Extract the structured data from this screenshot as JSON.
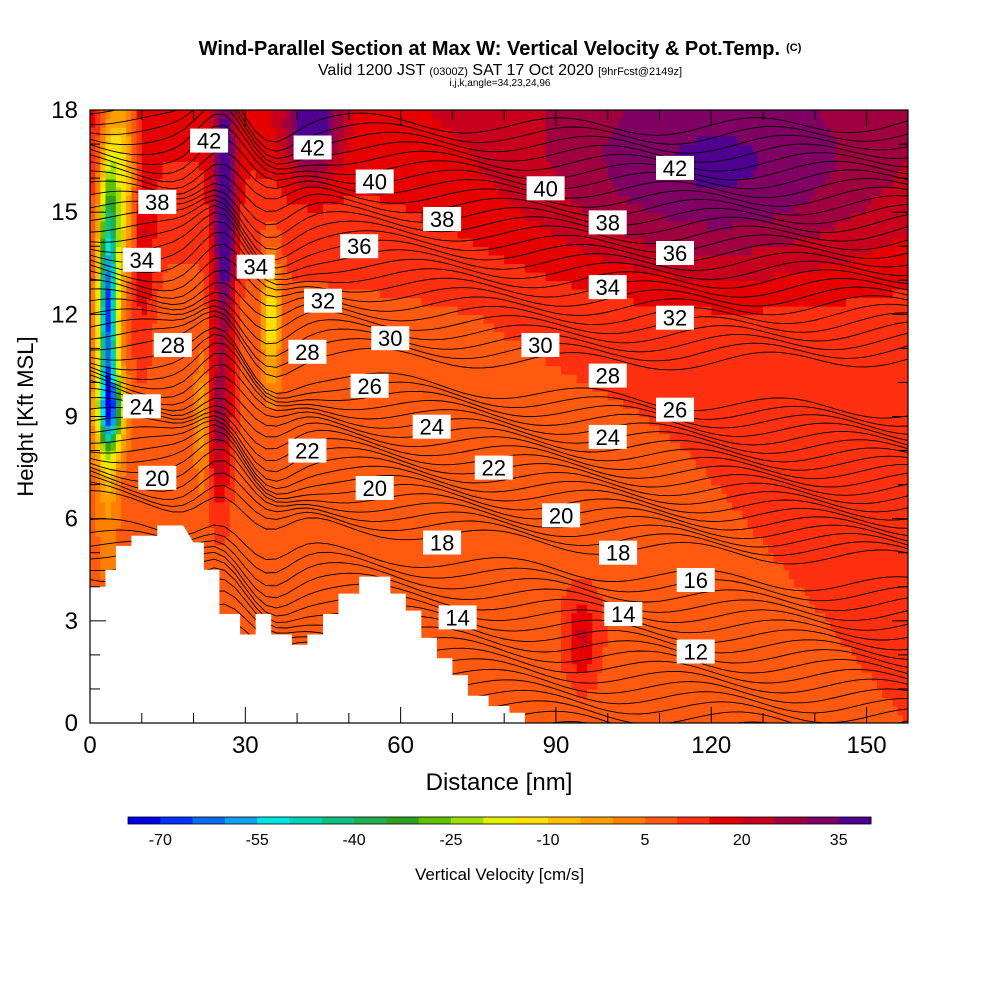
{
  "header": {
    "title": "Wind-Parallel Section at Max W: Vertical Velocity & Pot.Temp.",
    "copyright_mark": "(C)",
    "valid_prefix": "Valid 1200 JST",
    "utc_time": "(0300Z)",
    "valid_date": "SAT 17 Oct 2020",
    "forecast_info": "[9hrFcst@2149z]",
    "params": "i,j,k,angle=34,23,24,96"
  },
  "chart_data": {
    "type": "heatmap",
    "title": "Wind-Parallel Section at Max W: Vertical Velocity & Pot.Temp.",
    "xlabel": "Distance [nm]",
    "ylabel": "Height [Kft MSL]",
    "xlim": [
      0,
      158
    ],
    "ylim": [
      0,
      18
    ],
    "x_ticks": [
      0,
      30,
      60,
      90,
      120,
      150
    ],
    "y_ticks": [
      0,
      3,
      6,
      9,
      12,
      15,
      18
    ],
    "grid": false,
    "fill_variable": "Vertical Velocity [cm/s]",
    "contour_variable": "Potential Temperature",
    "colorbar": {
      "label": "Vertical Velocity [cm/s]",
      "tick_labels": [
        "-70",
        "-55",
        "-40",
        "-25",
        "-10",
        "5",
        "20",
        "35"
      ],
      "range": [
        -75,
        40
      ],
      "colors": [
        "#0000e6",
        "#0033ff",
        "#0a6cf0",
        "#10a0f0",
        "#00e6e6",
        "#00d2b4",
        "#10c080",
        "#20b050",
        "#30a020",
        "#60c000",
        "#a0e000",
        "#e6f000",
        "#ffe000",
        "#ffc000",
        "#ffa000",
        "#ff8000",
        "#ff5a10",
        "#ff3010",
        "#e60000",
        "#c8001e",
        "#a00040",
        "#800064",
        "#500090"
      ]
    },
    "terrain_profile": [
      [
        0,
        4
      ],
      [
        3,
        4
      ],
      [
        3,
        4.5
      ],
      [
        5,
        4.5
      ],
      [
        5,
        5.2
      ],
      [
        8,
        5.2
      ],
      [
        8,
        5.5
      ],
      [
        13,
        5.5
      ],
      [
        13,
        5.8
      ],
      [
        18,
        5.8
      ],
      [
        18,
        5.8
      ],
      [
        20,
        5.3
      ],
      [
        22,
        5.3
      ],
      [
        22,
        4.5
      ],
      [
        25,
        4.5
      ],
      [
        25,
        3.2
      ],
      [
        29,
        3.2
      ],
      [
        29,
        2.6
      ],
      [
        32,
        2.6
      ],
      [
        32,
        3.2
      ],
      [
        35,
        3.2
      ],
      [
        35,
        2.6
      ],
      [
        39,
        2.6
      ],
      [
        39,
        2.3
      ],
      [
        42,
        2.3
      ],
      [
        42,
        2.6
      ],
      [
        45,
        2.6
      ],
      [
        45,
        3.2
      ],
      [
        48,
        3.2
      ],
      [
        48,
        3.8
      ],
      [
        52,
        3.8
      ],
      [
        52,
        4.3
      ],
      [
        58,
        4.3
      ],
      [
        58,
        3.8
      ],
      [
        61,
        3.8
      ],
      [
        61,
        3.3
      ],
      [
        64,
        3.3
      ],
      [
        64,
        2.5
      ],
      [
        67,
        2.5
      ],
      [
        67,
        1.9
      ],
      [
        70,
        1.9
      ],
      [
        70,
        1.4
      ],
      [
        73,
        1.4
      ],
      [
        73,
        0.8
      ],
      [
        77,
        0.8
      ],
      [
        77,
        0.5
      ],
      [
        81,
        0.5
      ],
      [
        81,
        0.3
      ],
      [
        84,
        0.3
      ]
    ],
    "isentrope_labels": [
      {
        "value": "42",
        "x": 23,
        "y": 17.1
      },
      {
        "value": "42",
        "x": 43,
        "y": 16.9
      },
      {
        "value": "40",
        "x": 55,
        "y": 15.9
      },
      {
        "value": "40",
        "x": 88,
        "y": 15.7
      },
      {
        "value": "42",
        "x": 113,
        "y": 16.3
      },
      {
        "value": "38",
        "x": 13,
        "y": 15.3
      },
      {
        "value": "38",
        "x": 68,
        "y": 14.8
      },
      {
        "value": "38",
        "x": 100,
        "y": 14.7
      },
      {
        "value": "34",
        "x": 10,
        "y": 13.6
      },
      {
        "value": "34",
        "x": 32,
        "y": 13.4
      },
      {
        "value": "36",
        "x": 52,
        "y": 14.0
      },
      {
        "value": "36",
        "x": 113,
        "y": 13.8
      },
      {
        "value": "34",
        "x": 100,
        "y": 12.8
      },
      {
        "value": "32",
        "x": 45,
        "y": 12.4
      },
      {
        "value": "32",
        "x": 113,
        "y": 11.9
      },
      {
        "value": "30",
        "x": 58,
        "y": 11.3
      },
      {
        "value": "30",
        "x": 87,
        "y": 11.1
      },
      {
        "value": "28",
        "x": 16,
        "y": 11.1
      },
      {
        "value": "28",
        "x": 42,
        "y": 10.9
      },
      {
        "value": "28",
        "x": 100,
        "y": 10.2
      },
      {
        "value": "26",
        "x": 54,
        "y": 9.9
      },
      {
        "value": "26",
        "x": 113,
        "y": 9.2
      },
      {
        "value": "24",
        "x": 10,
        "y": 9.3
      },
      {
        "value": "24",
        "x": 66,
        "y": 8.7
      },
      {
        "value": "24",
        "x": 100,
        "y": 8.4
      },
      {
        "value": "22",
        "x": 42,
        "y": 8.0
      },
      {
        "value": "22",
        "x": 78,
        "y": 7.5
      },
      {
        "value": "20",
        "x": 13,
        "y": 7.2
      },
      {
        "value": "20",
        "x": 55,
        "y": 6.9
      },
      {
        "value": "20",
        "x": 91,
        "y": 6.1
      },
      {
        "value": "18",
        "x": 68,
        "y": 5.3
      },
      {
        "value": "18",
        "x": 102,
        "y": 5.0
      },
      {
        "value": "16",
        "x": 117,
        "y": 4.2
      },
      {
        "value": "14",
        "x": 71,
        "y": 3.1
      },
      {
        "value": "14",
        "x": 103,
        "y": 3.2
      },
      {
        "value": "12",
        "x": 117,
        "y": 2.1
      }
    ]
  }
}
